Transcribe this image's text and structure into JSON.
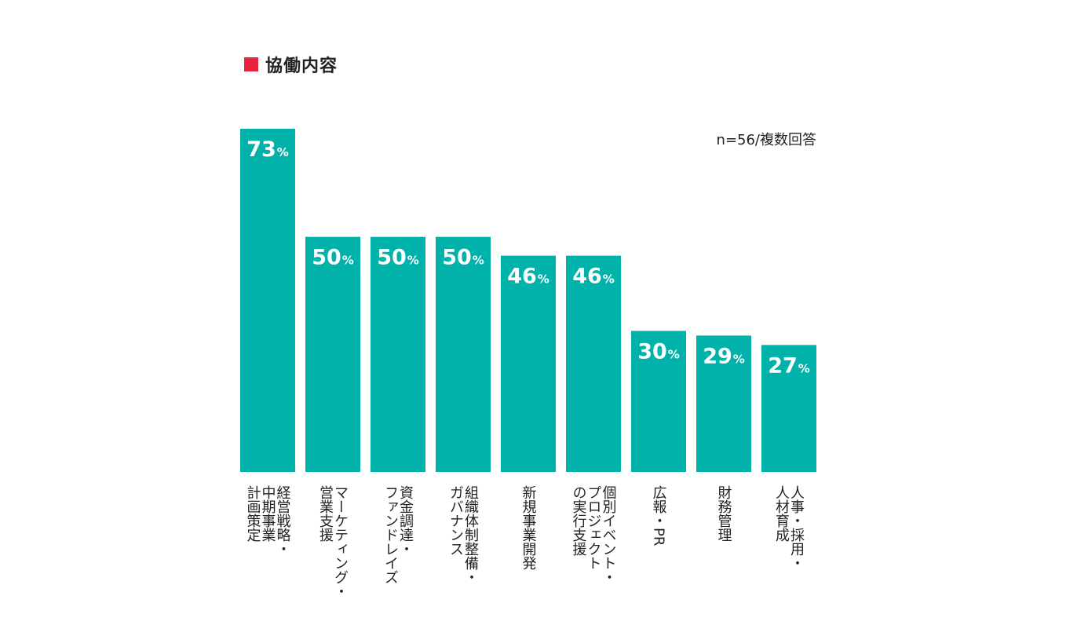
{
  "chart_data": {
    "type": "bar",
    "title": "協働内容",
    "note": "n=56/複数回答",
    "categories": [
      "経営戦略・\n中期事業\n計画策定",
      "マーケティング・\n営業支援",
      "資金調達・\nファンドレイズ",
      "組織体制整備・\nガバナンス",
      "新規事業開発",
      "個別イベント・\nプロジェクト\nの実行支援",
      "広報・PR",
      "財務管理",
      "人事・採用・\n人材育成"
    ],
    "values": [
      73,
      50,
      50,
      50,
      46,
      46,
      30,
      29,
      27
    ],
    "value_suffix": "%",
    "ylim": [
      0,
      73
    ],
    "colors": {
      "bar": "#00b2a9",
      "title_marker": "#e8233f",
      "value_text": "#ffffff"
    }
  }
}
